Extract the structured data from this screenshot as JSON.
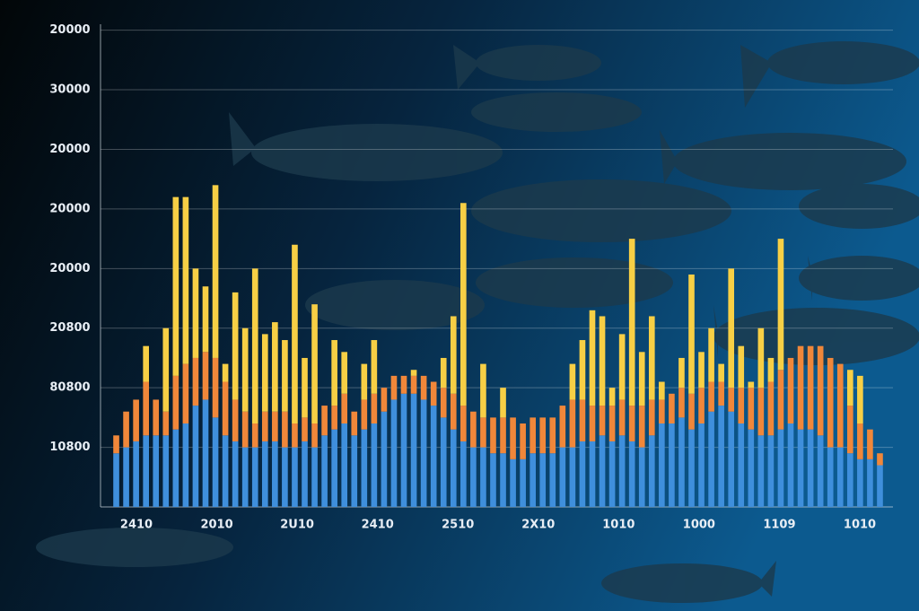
{
  "chart_data": {
    "type": "stacked_bar",
    "ylim": [
      0,
      8.1
    ],
    "yticks": [
      {
        "value": 1,
        "label": "10800"
      },
      {
        "value": 2,
        "label": "80800"
      },
      {
        "value": 3,
        "label": "20800"
      },
      {
        "value": 4,
        "label": "20000"
      },
      {
        "value": 5,
        "label": "20000"
      },
      {
        "value": 6,
        "label": "20000"
      },
      {
        "value": 7,
        "label": "30000"
      },
      {
        "value": 8,
        "label": "20000"
      }
    ],
    "x_labels": [
      "2410",
      "2010",
      "2U10",
      "2410",
      "2510",
      "2X10",
      "1010",
      "1000",
      "1109",
      "1010"
    ],
    "grid": true,
    "series": [
      {
        "color": "#3f8fdc",
        "values": [
          0.9,
          1.0,
          1.1,
          1.2,
          1.2,
          1.2,
          1.3,
          1.4,
          1.7,
          1.8,
          1.5,
          1.2,
          1.1,
          1.0,
          1.0,
          1.1,
          1.1,
          1.0,
          1.0,
          1.1,
          1.0,
          1.2,
          1.3,
          1.4,
          1.2,
          1.3,
          1.4,
          1.6,
          1.8,
          1.9,
          1.9,
          1.8,
          1.7,
          1.5,
          1.3,
          1.1,
          1.0,
          1.0,
          0.9,
          0.9,
          0.8,
          0.8,
          0.9,
          0.9,
          0.9,
          1.0,
          1.0,
          1.1,
          1.1,
          1.2,
          1.1,
          1.2,
          1.1,
          1.0,
          1.2,
          1.4,
          1.4,
          1.5,
          1.3,
          1.4,
          1.6,
          1.7,
          1.6,
          1.4,
          1.3,
          1.2,
          1.2,
          1.3,
          1.4,
          1.3,
          1.3,
          1.2,
          1.0,
          1.0,
          0.9,
          0.8,
          0.8,
          0.7
        ]
      },
      {
        "color": "#f0873a",
        "values": [
          0.3,
          0.6,
          0.7,
          0.9,
          0.6,
          0.4,
          0.9,
          1.0,
          0.8,
          0.8,
          1.0,
          0.9,
          0.7,
          0.6,
          0.4,
          0.5,
          0.5,
          0.6,
          0.4,
          0.4,
          0.4,
          0.5,
          0.4,
          0.5,
          0.4,
          0.5,
          0.5,
          0.4,
          0.4,
          0.3,
          0.3,
          0.4,
          0.4,
          0.5,
          0.6,
          0.6,
          0.6,
          0.5,
          0.6,
          0.6,
          0.7,
          0.6,
          0.6,
          0.6,
          0.6,
          0.7,
          0.8,
          0.7,
          0.6,
          0.5,
          0.6,
          0.6,
          0.6,
          0.7,
          0.6,
          0.4,
          0.5,
          0.5,
          0.6,
          0.6,
          0.5,
          0.4,
          0.4,
          0.6,
          0.7,
          0.8,
          0.9,
          1.0,
          1.1,
          1.4,
          1.4,
          1.5,
          1.5,
          1.4,
          0.8,
          0.6,
          0.5,
          0.2
        ]
      },
      {
        "color": "#f7cf45",
        "values": [
          0,
          0,
          0,
          0.6,
          0,
          1.4,
          3.0,
          2.8,
          1.5,
          1.1,
          2.9,
          0.3,
          1.8,
          1.4,
          2.6,
          1.3,
          1.5,
          1.2,
          3.0,
          1.0,
          2.0,
          0,
          1.1,
          0.7,
          0,
          0.6,
          0.9,
          0,
          0,
          0,
          0.1,
          0,
          0,
          0.5,
          1.3,
          3.4,
          0,
          0.9,
          0,
          0.5,
          0,
          0,
          0,
          0,
          0,
          0,
          0.6,
          1.0,
          1.6,
          1.5,
          0.3,
          1.1,
          2.8,
          0.9,
          1.4,
          0.3,
          0,
          0.5,
          2.0,
          0.6,
          0.9,
          0.3,
          2.0,
          0.7,
          0.1,
          1.0,
          0.4,
          2.2,
          0,
          0,
          0,
          0,
          0,
          0,
          0.6,
          0.8,
          0,
          0
        ]
      }
    ]
  }
}
